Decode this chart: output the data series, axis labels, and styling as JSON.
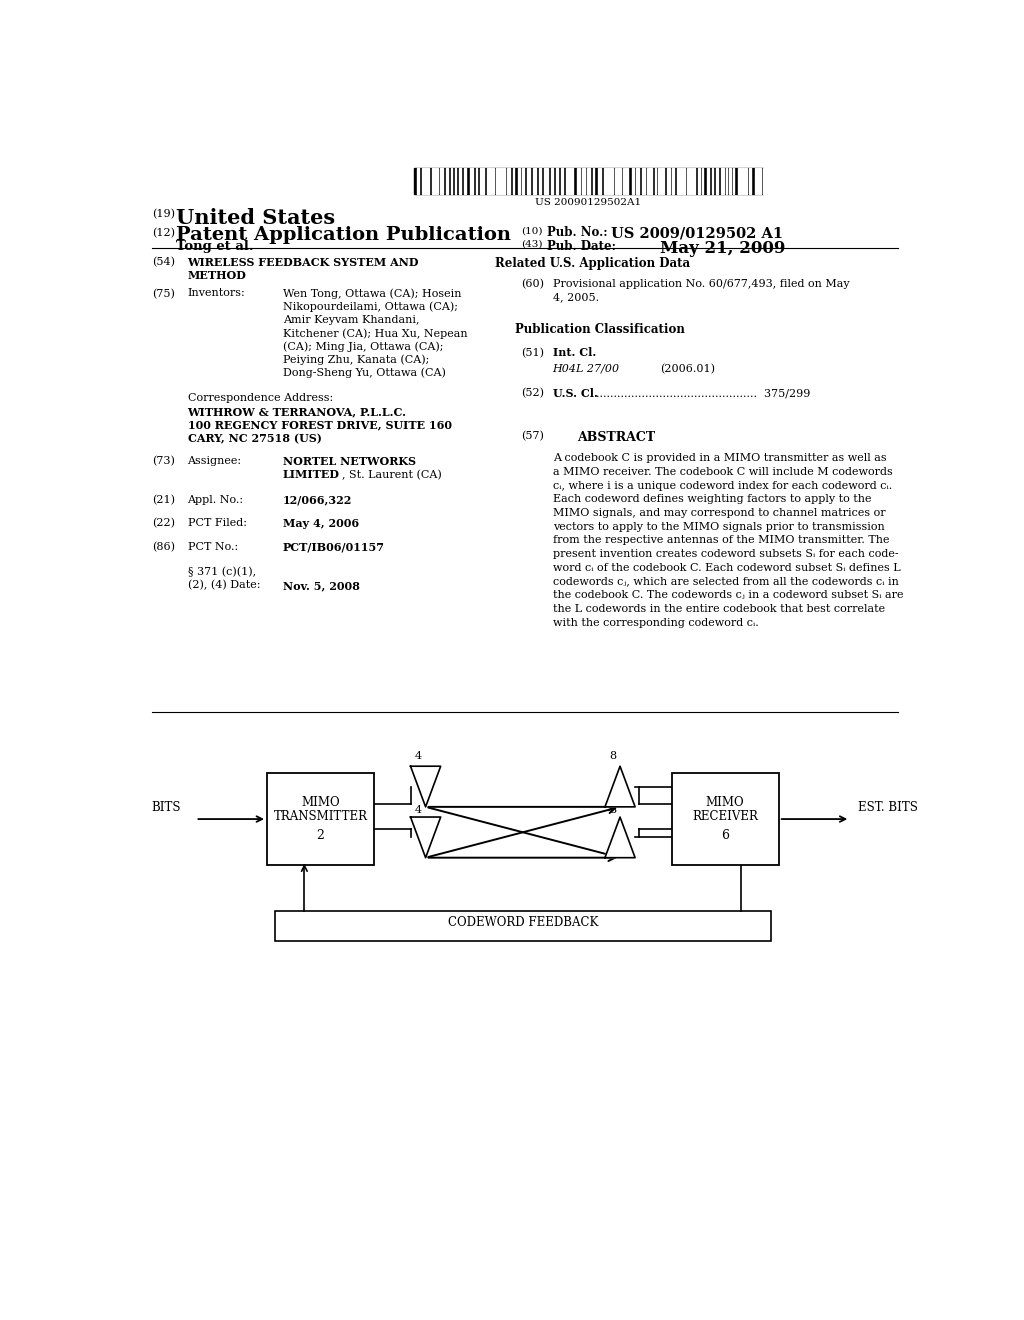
{
  "barcode_text": "US 20090129502A1",
  "pub_no": "US 2009/0129502 A1",
  "pub_date": "May 21, 2009",
  "tong": "Tong et al.",
  "field54_title_1": "WIRELESS FEEDBACK SYSTEM AND",
  "field54_title_2": "METHOD",
  "inv_lines": [
    "Wen Tong, Ottawa (CA); Hosein",
    "Nikopourdeilami, Ottawa (CA);",
    "Amir Keyvam Khandani,",
    "Kitchener (CA); Hua Xu, Nepean",
    "(CA); Ming Jia, Ottawa (CA);",
    "Peiying Zhu, Kanata (CA);",
    "Dong-Sheng Yu, Ottawa (CA)"
  ],
  "corr_lines": [
    "Correspondence Address:",
    "WITHROW & TERRANOVA, P.L.L.C.",
    "100 REGENCY FOREST DRIVE, SUITE 160",
    "CARY, NC 27518 (US)"
  ],
  "assignee_1": "NORTEL NETWORKS",
  "assignee_2": "LIMITED",
  "assignee_2b": ", St. Laurent (CA)",
  "appl_no": "12/066,322",
  "pct_filed": "May 4, 2006",
  "pct_no": "PCT/IB06/01157",
  "sect371_1": "§ 371 (c)(1),",
  "sect371_2": "(2), (4) Date:",
  "sect371_val": "Nov. 5, 2008",
  "related_header": "Related U.S. Application Data",
  "field60_1": "Provisional application No. 60/677,493, filed on May",
  "field60_2": "4, 2005.",
  "pub_class_header": "Publication Classification",
  "int_cl_val": "H04L 27/00",
  "int_cl_year": "(2006.01)",
  "us_cl_val": "375/299",
  "abstract_header": "ABSTRACT",
  "abstract_lines": [
    "A codebook C is provided in a MIMO transmitter as well as",
    "a MIMO receiver. The codebook C will include M codewords",
    "cᵢ, where i is a unique codeword index for each codeword cᵢ.",
    "Each codeword defines weighting factors to apply to the",
    "MIMO signals, and may correspond to channel matrices or",
    "vectors to apply to the MIMO signals prior to transmission",
    "from the respective antennas of the MIMO transmitter. The",
    "present invention creates codeword subsets Sᵢ for each code-",
    "word cᵢ of the codebook C. Each codeword subset Sᵢ defines L",
    "codewords cⱼ, which are selected from all the codewords cᵢ in",
    "the codebook C. The codewords cⱼ in a codeword subset Sᵢ are",
    "the L codewords in the entire codebook that best correlate",
    "with the corresponding codeword cᵢ."
  ],
  "bg_color": "#ffffff"
}
